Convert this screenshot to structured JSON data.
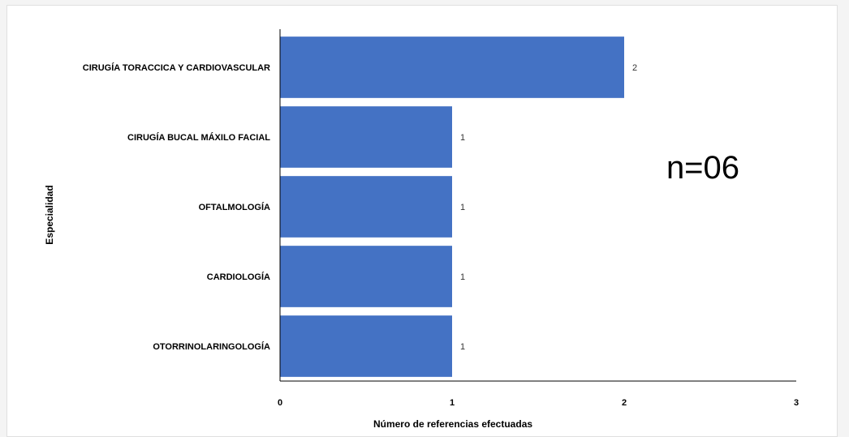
{
  "chart_data": {
    "type": "bar",
    "orientation": "horizontal",
    "categories": [
      "CIRUGÍA TORACCICA Y CARDIOVASCULAR",
      "CIRUGÍA BUCAL MÁXILO FACIAL",
      "OFTALMOLOGÍA",
      "CARDIOLOGÍA",
      "OTORRINOLARINGOLOGÍA"
    ],
    "values": [
      2,
      1,
      1,
      1,
      1
    ],
    "data_labels": [
      "2",
      "1",
      "1",
      "1",
      "1"
    ],
    "xlabel": "Número de referencias efectuadas",
    "ylabel": "Especialidad",
    "xlim": [
      0,
      3
    ],
    "xticks": [
      "0",
      "1",
      "2",
      "3"
    ],
    "grid": false,
    "annotation": "n=06",
    "bar_color": "#4472c4"
  }
}
